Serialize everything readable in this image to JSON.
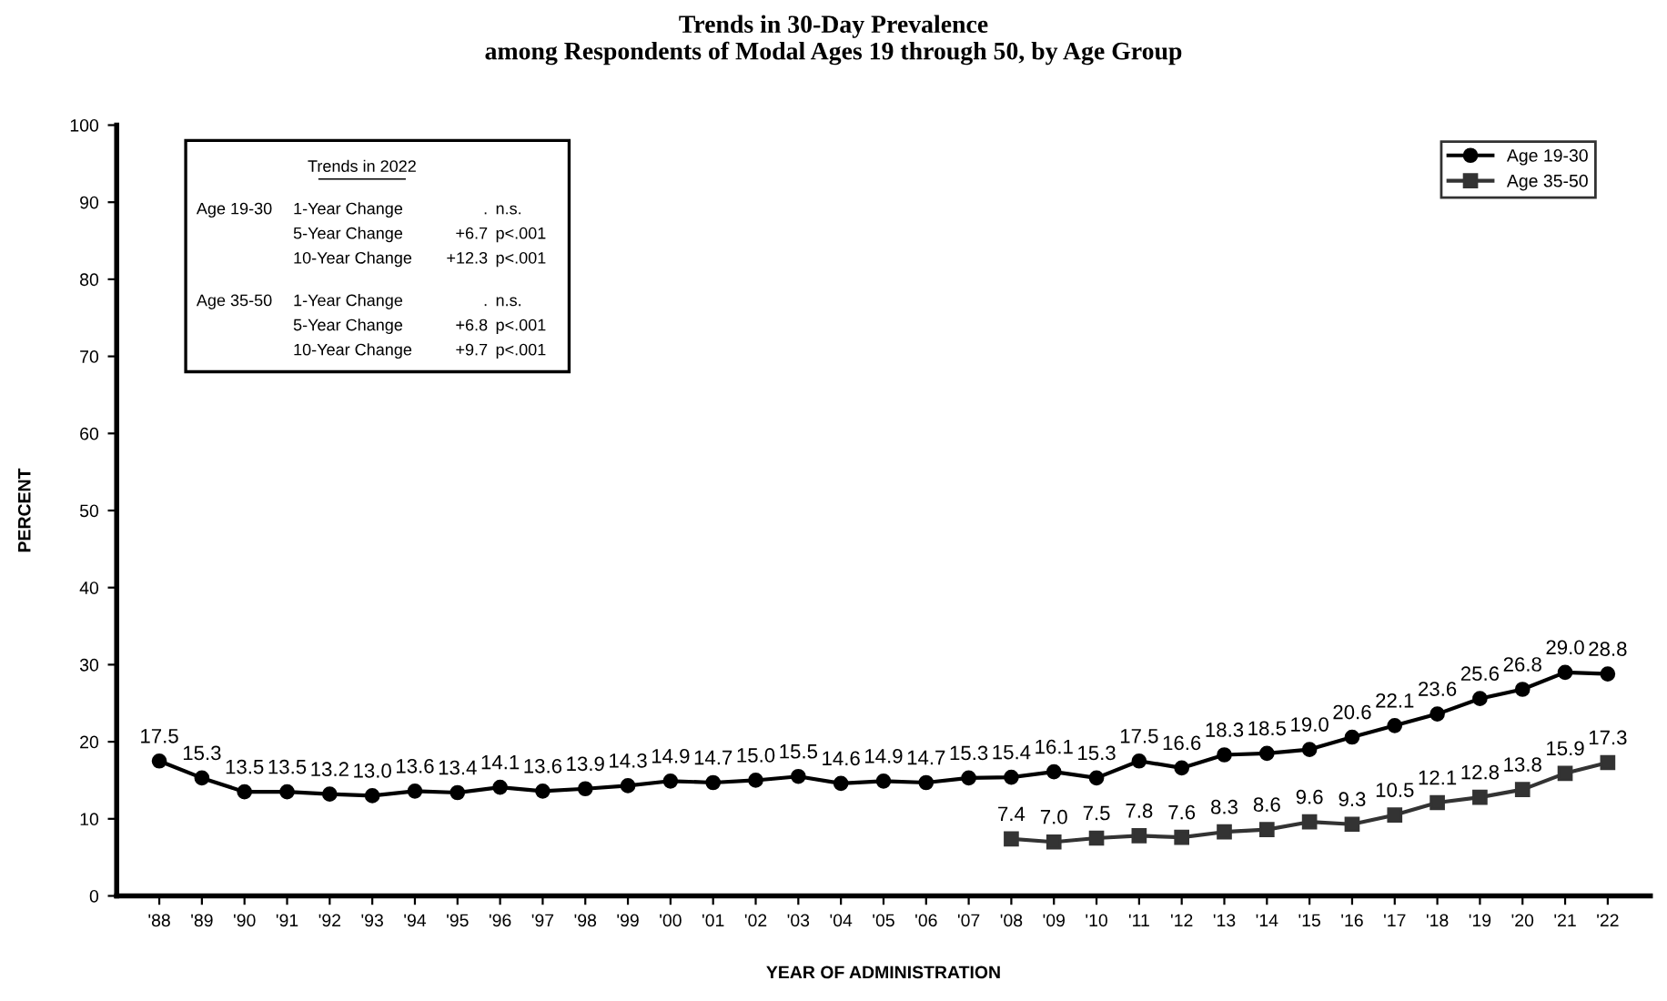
{
  "chart_data": {
    "type": "line",
    "title": "Trends in 30-Day Prevalence\namong Respondents of Modal Ages 19 through 50, by Age Group",
    "xlabel": "YEAR OF ADMINISTRATION",
    "ylabel": "PERCENT",
    "categories": [
      "'88",
      "'89",
      "'90",
      "'91",
      "'92",
      "'93",
      "'94",
      "'95",
      "'96",
      "'97",
      "'98",
      "'99",
      "'00",
      "'01",
      "'02",
      "'03",
      "'04",
      "'05",
      "'06",
      "'07",
      "'08",
      "'09",
      "'10",
      "'11",
      "'12",
      "'13",
      "'14",
      "'15",
      "'16",
      "'17",
      "'18",
      "'19",
      "'20",
      "'21",
      "'22"
    ],
    "series": [
      {
        "name": "Age 19-30",
        "color": "#000000",
        "marker": "circle",
        "values": [
          17.5,
          15.3,
          13.5,
          13.5,
          13.2,
          13.0,
          13.6,
          13.4,
          14.1,
          13.6,
          13.9,
          14.3,
          14.9,
          14.7,
          15.0,
          15.5,
          14.6,
          14.9,
          14.7,
          15.3,
          15.4,
          16.1,
          15.3,
          17.5,
          16.6,
          18.3,
          18.5,
          19.0,
          20.6,
          22.1,
          23.6,
          25.6,
          26.8,
          29.0,
          28.8
        ],
        "value_labels": [
          "17.5",
          "15.3",
          "13.5",
          "13.5",
          "13.2",
          "13.0",
          "13.6",
          "13.4",
          "14.1",
          "13.6",
          "13.9",
          "14.3",
          "14.9",
          "14.7",
          "15.0",
          "15.5",
          "14.6",
          "14.9",
          "14.7",
          "15.3",
          "15.4",
          "16.1",
          "15.3",
          "17.5",
          "16.6",
          "18.3",
          "18.5",
          "19.0",
          "20.6",
          "22.1",
          "23.6",
          "25.6",
          "26.8",
          "29.0",
          "28.8"
        ]
      },
      {
        "name": "Age 35-50",
        "color": "#333333",
        "marker": "square",
        "values": [
          null,
          null,
          null,
          null,
          null,
          null,
          null,
          null,
          null,
          null,
          null,
          null,
          null,
          null,
          null,
          null,
          null,
          null,
          null,
          null,
          7.4,
          7.0,
          7.5,
          7.8,
          7.6,
          8.3,
          8.6,
          9.6,
          9.3,
          10.5,
          12.1,
          12.8,
          13.8,
          15.9,
          17.3
        ],
        "value_labels": [
          null,
          null,
          null,
          null,
          null,
          null,
          null,
          null,
          null,
          null,
          null,
          null,
          null,
          null,
          null,
          null,
          null,
          null,
          null,
          null,
          "7.4",
          "7.0",
          "7.5",
          "7.8",
          "7.6",
          "8.3",
          "8.6",
          "9.6",
          "9.3",
          "10.5",
          "12.1",
          "12.8",
          "13.8",
          "15.9",
          "17.3"
        ]
      }
    ],
    "ylim": [
      0,
      100
    ],
    "yticks": [
      0,
      10,
      20,
      30,
      40,
      50,
      60,
      70,
      80,
      90,
      100
    ],
    "grid": false,
    "legend": "top right",
    "line_style": "solid",
    "annotations": [
      "Trends in 2022",
      "Age 19-30\t1-Year Change\t.\tn.s.",
      "\t5-Year Change\t+6.7\tp<.001",
      "\t10-Year Change\t+12.3\tp<.001",
      "Age 35-50\t1-Year Change\t.\tn.s.",
      "\t5-Year Change\t+6.8\tp<.001",
      "\t10-Year Change\t+9.7\tp<.001"
    ]
  }
}
